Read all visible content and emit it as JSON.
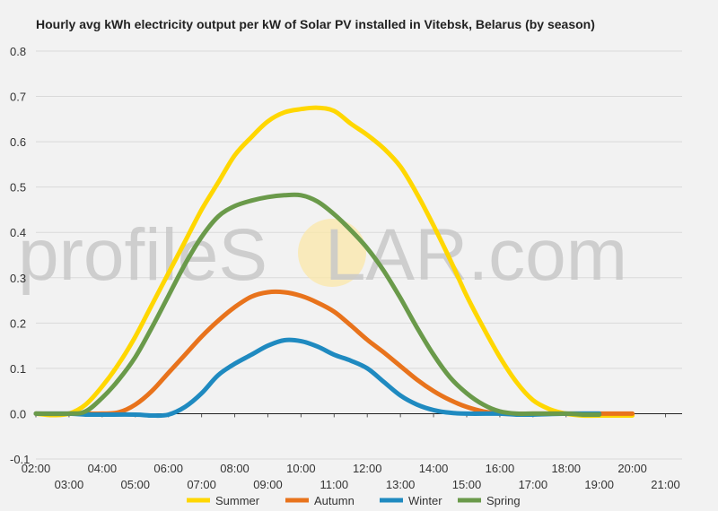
{
  "watermark": {
    "left": "profileS",
    "middle": "O",
    "right": "LAR.com"
  },
  "chart_data": {
    "type": "line",
    "title": "Hourly avg kWh electricity output per kW of Solar PV installed in Vitebsk, Belarus (by season)",
    "xlabel": "",
    "ylabel": "",
    "x": [
      "02:00",
      "03:00",
      "04:00",
      "05:00",
      "06:00",
      "07:00",
      "08:00",
      "09:00",
      "10:00",
      "11:00",
      "12:00",
      "13:00",
      "14:00",
      "15:00",
      "16:00",
      "17:00",
      "18:00",
      "19:00",
      "20:00",
      "21:00"
    ],
    "xlim": [
      2,
      21.5
    ],
    "ylim": [
      -0.1,
      0.8
    ],
    "yticks": [
      "-0.1",
      "0.0",
      "0.1",
      "0.2",
      "0.3",
      "0.4",
      "0.5",
      "0.6",
      "0.7",
      "0.8"
    ],
    "grid": true,
    "legend_position": "bottom",
    "series": [
      {
        "name": "Summer",
        "color": "#ffd700",
        "points": [
          [
            2,
            0
          ],
          [
            2.5,
            -0.003
          ],
          [
            3,
            0
          ],
          [
            3.5,
            0.02
          ],
          [
            4,
            0.06
          ],
          [
            4.5,
            0.11
          ],
          [
            5,
            0.17
          ],
          [
            5.5,
            0.24
          ],
          [
            6,
            0.31
          ],
          [
            6.5,
            0.38
          ],
          [
            7,
            0.45
          ],
          [
            7.5,
            0.51
          ],
          [
            8,
            0.57
          ],
          [
            8.5,
            0.61
          ],
          [
            9,
            0.645
          ],
          [
            9.5,
            0.665
          ],
          [
            10,
            0.672
          ],
          [
            10.5,
            0.675
          ],
          [
            11,
            0.668
          ],
          [
            11.5,
            0.64
          ],
          [
            12,
            0.615
          ],
          [
            12.5,
            0.585
          ],
          [
            13,
            0.545
          ],
          [
            13.5,
            0.485
          ],
          [
            14,
            0.415
          ],
          [
            14.5,
            0.34
          ],
          [
            15,
            0.26
          ],
          [
            15.5,
            0.19
          ],
          [
            16,
            0.125
          ],
          [
            16.5,
            0.07
          ],
          [
            17,
            0.03
          ],
          [
            17.5,
            0.01
          ],
          [
            18,
            0
          ],
          [
            18.5,
            -0.004
          ],
          [
            19,
            -0.004
          ],
          [
            20,
            -0.004
          ]
        ]
      },
      {
        "name": "Autumn",
        "color": "#e8731c",
        "points": [
          [
            2,
            0
          ],
          [
            3,
            0
          ],
          [
            4,
            0
          ],
          [
            4.5,
            0.003
          ],
          [
            5,
            0.02
          ],
          [
            5.5,
            0.05
          ],
          [
            6,
            0.09
          ],
          [
            6.5,
            0.13
          ],
          [
            7,
            0.17
          ],
          [
            7.5,
            0.205
          ],
          [
            8,
            0.235
          ],
          [
            8.5,
            0.258
          ],
          [
            9,
            0.268
          ],
          [
            9.5,
            0.268
          ],
          [
            10,
            0.26
          ],
          [
            10.5,
            0.245
          ],
          [
            11,
            0.225
          ],
          [
            11.5,
            0.195
          ],
          [
            12,
            0.163
          ],
          [
            12.5,
            0.135
          ],
          [
            13,
            0.105
          ],
          [
            13.5,
            0.075
          ],
          [
            14,
            0.05
          ],
          [
            14.5,
            0.03
          ],
          [
            15,
            0.015
          ],
          [
            15.5,
            0.005
          ],
          [
            16,
            0
          ],
          [
            17,
            0
          ],
          [
            18,
            0
          ],
          [
            19,
            0
          ],
          [
            20,
            0
          ]
        ]
      },
      {
        "name": "Winter",
        "color": "#1f8ac0",
        "points": [
          [
            2,
            0
          ],
          [
            3,
            0
          ],
          [
            3.5,
            -0.002
          ],
          [
            4,
            -0.002
          ],
          [
            5,
            -0.002
          ],
          [
            5.5,
            -0.004
          ],
          [
            6,
            -0.002
          ],
          [
            6.5,
            0.015
          ],
          [
            7,
            0.045
          ],
          [
            7.5,
            0.085
          ],
          [
            8,
            0.11
          ],
          [
            8.5,
            0.13
          ],
          [
            9,
            0.15
          ],
          [
            9.5,
            0.162
          ],
          [
            10,
            0.16
          ],
          [
            10.5,
            0.148
          ],
          [
            11,
            0.13
          ],
          [
            11.5,
            0.117
          ],
          [
            12,
            0.1
          ],
          [
            12.5,
            0.07
          ],
          [
            13,
            0.04
          ],
          [
            13.5,
            0.02
          ],
          [
            14,
            0.008
          ],
          [
            14.5,
            0.002
          ],
          [
            15,
            0
          ],
          [
            16,
            0
          ],
          [
            16.5,
            -0.002
          ],
          [
            17,
            -0.002
          ],
          [
            18,
            0
          ],
          [
            19,
            0
          ]
        ]
      },
      {
        "name": "Spring",
        "color": "#6a9a4a",
        "points": [
          [
            2,
            0
          ],
          [
            3,
            0
          ],
          [
            3.5,
            0.005
          ],
          [
            4,
            0.035
          ],
          [
            4.5,
            0.075
          ],
          [
            5,
            0.125
          ],
          [
            5.5,
            0.19
          ],
          [
            6,
            0.26
          ],
          [
            6.5,
            0.33
          ],
          [
            7,
            0.39
          ],
          [
            7.5,
            0.435
          ],
          [
            8,
            0.458
          ],
          [
            8.5,
            0.47
          ],
          [
            9,
            0.478
          ],
          [
            9.5,
            0.482
          ],
          [
            10,
            0.482
          ],
          [
            10.5,
            0.468
          ],
          [
            11,
            0.44
          ],
          [
            11.5,
            0.405
          ],
          [
            12,
            0.365
          ],
          [
            12.5,
            0.315
          ],
          [
            13,
            0.255
          ],
          [
            13.5,
            0.19
          ],
          [
            14,
            0.13
          ],
          [
            14.5,
            0.08
          ],
          [
            15,
            0.045
          ],
          [
            15.5,
            0.02
          ],
          [
            16,
            0.005
          ],
          [
            16.5,
            0
          ],
          [
            17,
            0
          ],
          [
            18,
            0
          ],
          [
            18.5,
            -0.002
          ],
          [
            19,
            -0.002
          ]
        ]
      }
    ]
  }
}
